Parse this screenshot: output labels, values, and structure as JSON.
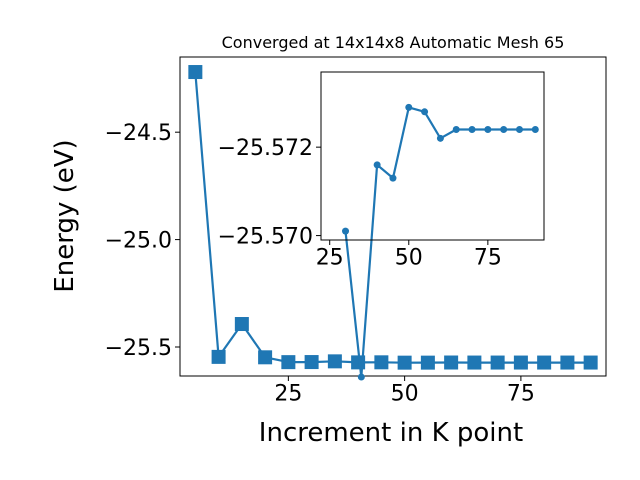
{
  "chart_data": [
    {
      "type": "line",
      "title": "Converged at 14x14x8 Automatic Mesh 65",
      "xlabel": "Increment in K point",
      "ylabel": "Energy (eV)",
      "xlim": [
        1.7,
        93.3
      ],
      "ylim": [
        -25.635,
        -24.15
      ],
      "xticks": [
        25,
        50,
        75
      ],
      "yticks": [
        -24.5,
        -25.0,
        -25.5
      ],
      "ytick_labels": [
        "−24.5",
        "−25.0",
        "−25.5"
      ],
      "grid": false,
      "marker": "square",
      "color": "#1f77b4",
      "x": [
        5,
        10,
        15,
        20,
        25,
        30,
        35,
        40,
        45,
        50,
        55,
        60,
        65,
        70,
        75,
        80,
        85,
        90
      ],
      "y": [
        -24.22,
        -25.546,
        -25.393,
        -25.548,
        -25.5705,
        -25.5701,
        -25.5668,
        -25.5716,
        -25.5713,
        -25.5729,
        -25.5728,
        -25.5722,
        -25.5724,
        -25.5724,
        -25.5724,
        -25.5724,
        -25.5724,
        -25.5724
      ]
    },
    {
      "type": "line",
      "role": "inset",
      "xlim": [
        22.25,
        92.75
      ],
      "ylim": [
        -25.5699,
        -25.5737
      ],
      "xticks": [
        25,
        50,
        75
      ],
      "yticks": [
        -25.572,
        -25.57
      ],
      "ytick_labels": [
        "−25.572",
        "−25.570"
      ],
      "grid": false,
      "marker": "circle",
      "color": "#1f77b4",
      "x": [
        30,
        35,
        40,
        45,
        50,
        55,
        60,
        65,
        70,
        75,
        80,
        85,
        90
      ],
      "y": [
        -25.5701,
        -25.5668,
        -25.5716,
        -25.5713,
        -25.5729,
        -25.5728,
        -25.5722,
        -25.5724,
        -25.5724,
        -25.5724,
        -25.5724,
        -25.5724,
        -25.5724
      ]
    }
  ]
}
